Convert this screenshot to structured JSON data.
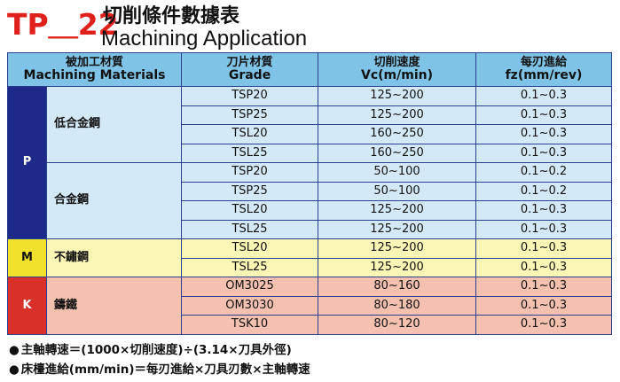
{
  "header": {
    "code": "TP＿22",
    "title_cn": "切削條件數據表",
    "title_en": "Machining Application"
  },
  "table": {
    "headers": [
      {
        "cn": "被加工材質",
        "en": "Machining Materials"
      },
      {
        "cn": "刀片材質",
        "en": "Grade"
      },
      {
        "cn": "切削速度",
        "en": "Vc(m/min)"
      },
      {
        "cn": "每刃進給",
        "en": "fz(mm/rev)"
      }
    ],
    "groups": [
      {
        "category": "P",
        "materials": [
          {
            "name": "低合金鋼",
            "rows": [
              {
                "grade": "TSP20",
                "vc": "125~200",
                "fz": "0.1~0.3"
              },
              {
                "grade": "TSP25",
                "vc": "125~200",
                "fz": "0.1~0.3"
              },
              {
                "grade": "TSL20",
                "vc": "160~250",
                "fz": "0.1~0.3"
              },
              {
                "grade": "TSL25",
                "vc": "160~250",
                "fz": "0.1~0.3"
              }
            ]
          },
          {
            "name": "合金鋼",
            "rows": [
              {
                "grade": "TSP20",
                "vc": "50~100",
                "fz": "0.1~0.2"
              },
              {
                "grade": "TSP25",
                "vc": "50~100",
                "fz": "0.1~0.2"
              },
              {
                "grade": "TSL20",
                "vc": "125~200",
                "fz": "0.1~0.3"
              },
              {
                "grade": "TSL25",
                "vc": "125~200",
                "fz": "0.1~0.3"
              }
            ]
          }
        ]
      },
      {
        "category": "M",
        "materials": [
          {
            "name": "不鏽鋼",
            "rows": [
              {
                "grade": "TSL20",
                "vc": "125~200",
                "fz": "0.1~0.3"
              },
              {
                "grade": "TSL25",
                "vc": "125~200",
                "fz": "0.1~0.3"
              }
            ]
          }
        ]
      },
      {
        "category": "K",
        "materials": [
          {
            "name": "鑄鐵",
            "rows": [
              {
                "grade": "OM3025",
                "vc": "80~160",
                "fz": "0.1~0.3"
              },
              {
                "grade": "OM3030",
                "vc": "80~180",
                "fz": "0.1~0.3"
              },
              {
                "grade": "TSK10",
                "vc": "80~120",
                "fz": "0.1~0.3"
              }
            ]
          }
        ]
      }
    ]
  },
  "notes": [
    "主軸轉速＝(1000×切削速度)÷(3.14×刀具外徑)",
    "床檯進給(mm/min)＝每刃進給×刀具刃數×主軸轉速"
  ],
  "colors": {
    "header_bg": "#7fc4e6",
    "P": "#1e2a8a",
    "M": "#f2e12c",
    "K": "#d9302a",
    "P_rows": "#d4e9f7",
    "M_rows": "#fcf6b6",
    "K_rows": "#f4c0b0",
    "code_red": "#e0201a"
  }
}
